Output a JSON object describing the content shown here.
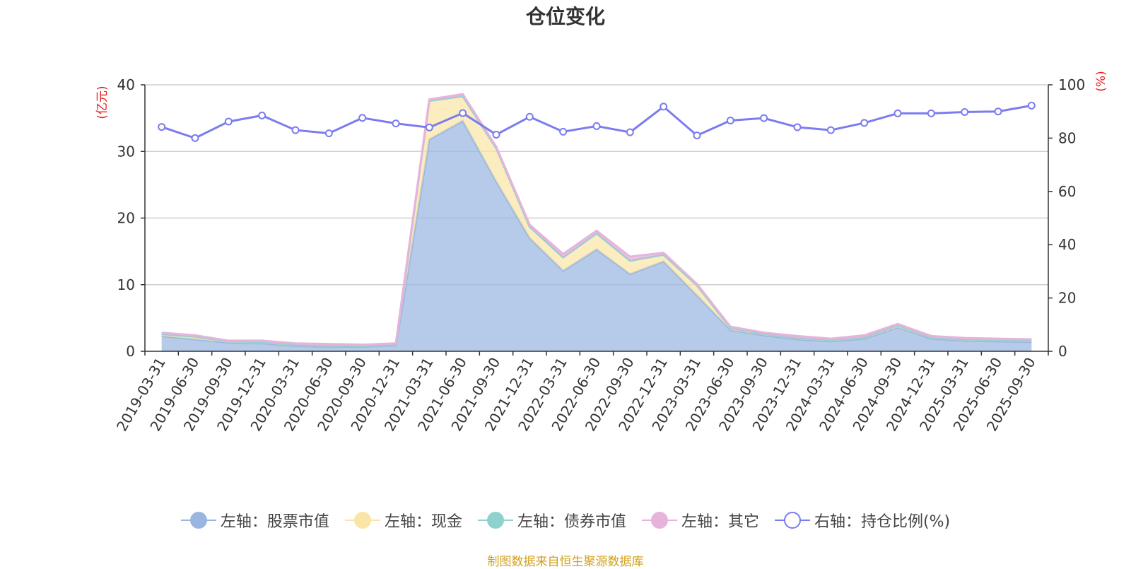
{
  "title": "仓位变化",
  "source_note": "制图数据来自恒生聚源数据库",
  "left_unit": "(亿元)",
  "right_unit": "(%)",
  "legend": [
    {
      "label": "左轴：股票市值",
      "color": "#9ab6e0",
      "hollow": false
    },
    {
      "label": "左轴：现金",
      "color": "#f9e6a6",
      "hollow": false
    },
    {
      "label": "左轴：债券市值",
      "color": "#8fd1cf",
      "hollow": false
    },
    {
      "label": "左轴：其它",
      "color": "#e7b3dd",
      "hollow": false
    },
    {
      "label": "右轴：持仓比例(%)",
      "color": "#7b7cf0",
      "hollow": true
    }
  ],
  "chart_data": {
    "type": "area",
    "categories": [
      "2019-03-31",
      "2019-06-30",
      "2019-09-30",
      "2019-12-31",
      "2020-03-31",
      "2020-06-30",
      "2020-09-30",
      "2020-12-31",
      "2021-03-31",
      "2021-06-30",
      "2021-09-30",
      "2021-12-31",
      "2022-03-31",
      "2022-06-30",
      "2022-09-30",
      "2022-12-31",
      "2023-03-31",
      "2023-06-30",
      "2023-09-30",
      "2023-12-31",
      "2024-03-31",
      "2024-06-30",
      "2024-09-30",
      "2024-12-31",
      "2025-03-31",
      "2025-06-30",
      "2025-09-30"
    ],
    "left_axis": {
      "ylim": [
        0,
        40
      ],
      "ticks": [
        0,
        10,
        20,
        30,
        40
      ]
    },
    "right_axis": {
      "ylim": [
        0,
        100
      ],
      "ticks": [
        0,
        20,
        40,
        60,
        80,
        100
      ]
    },
    "stacked_series": [
      {
        "name": "左轴：股票市值",
        "color": "#9ab6e0",
        "values": [
          2.3,
          1.8,
          1.3,
          1.2,
          0.8,
          0.7,
          0.7,
          0.9,
          31.8,
          34.6,
          25.5,
          17.0,
          12.1,
          15.3,
          11.6,
          13.5,
          8.4,
          3.2,
          2.4,
          1.8,
          1.5,
          1.9,
          3.6,
          1.9,
          1.6,
          1.5,
          1.4
        ]
      },
      {
        "name": "左轴：现金",
        "color": "#f9e6a6",
        "values": [
          0.3,
          0.4,
          0.2,
          0.2,
          0.2,
          0.2,
          0.1,
          0.1,
          5.8,
          3.7,
          5.0,
          1.7,
          2.0,
          2.4,
          2.0,
          1.0,
          1.5,
          0.3,
          0.2,
          0.2,
          0.2,
          0.2,
          0.3,
          0.2,
          0.2,
          0.2,
          0.2
        ]
      },
      {
        "name": "左轴：债券市值",
        "color": "#8fd1cf",
        "values": [
          0,
          0,
          0,
          0,
          0,
          0,
          0,
          0,
          0,
          0,
          0,
          0,
          0,
          0,
          0,
          0,
          0,
          0,
          0,
          0,
          0,
          0,
          0,
          0,
          0,
          0,
          0
        ]
      },
      {
        "name": "左轴：其它",
        "color": "#e7b3dd",
        "values": [
          0.2,
          0.2,
          0.1,
          0.2,
          0.2,
          0.2,
          0.2,
          0.2,
          0.2,
          0.3,
          0.2,
          0.3,
          0.5,
          0.4,
          0.6,
          0.3,
          0.2,
          0.2,
          0.2,
          0.3,
          0.2,
          0.3,
          0.2,
          0.2,
          0.2,
          0.2,
          0.2
        ]
      }
    ],
    "line_series": {
      "name": "右轴：持仓比例(%)",
      "color": "#7b7cf0",
      "values": [
        84.2,
        80.0,
        86.2,
        88.5,
        83.0,
        81.8,
        87.6,
        85.5,
        84.0,
        89.4,
        81.3,
        88.0,
        82.4,
        84.5,
        82.2,
        91.8,
        81.0,
        86.6,
        87.5,
        84.1,
        83.0,
        85.7,
        89.3,
        89.3,
        89.8,
        90.0,
        92.2
      ]
    }
  }
}
